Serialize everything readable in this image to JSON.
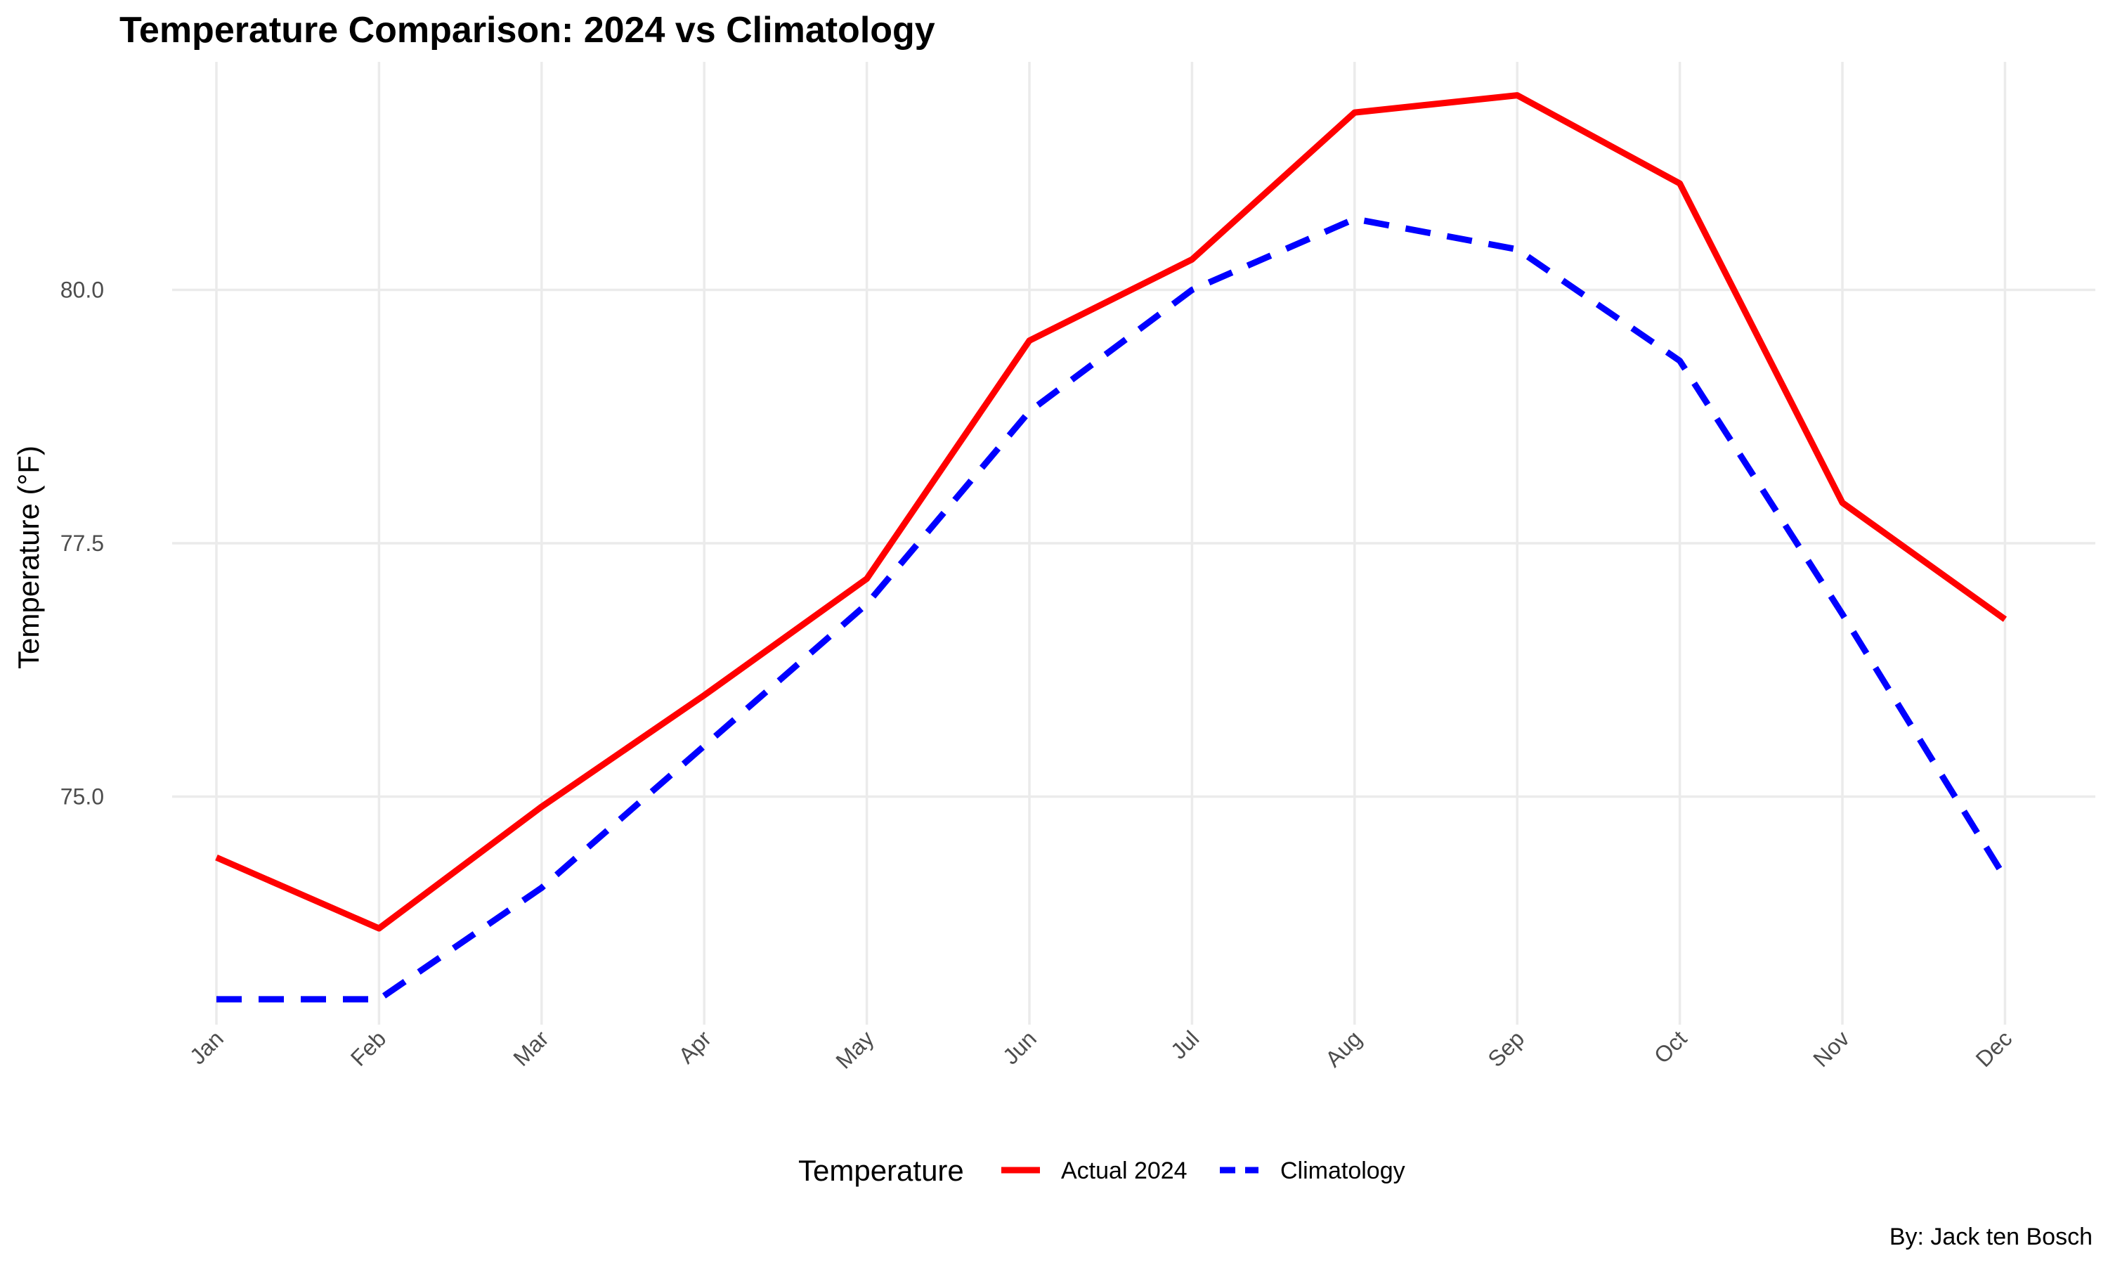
{
  "chart_data": {
    "type": "line",
    "title": "Temperature Comparison: 2024 vs Climatology",
    "xlabel": "",
    "ylabel": "Temperature (°F)",
    "categories": [
      "Jan",
      "Feb",
      "Mar",
      "Apr",
      "May",
      "Jun",
      "Jul",
      "Aug",
      "Sep",
      "Oct",
      "Nov",
      "Dec"
    ],
    "ylim": [
      72.75,
      82.25
    ],
    "yticks": [
      75.0,
      77.5,
      80.0
    ],
    "ytick_labels": [
      "75.0",
      "77.5",
      "80.0"
    ],
    "grid": true,
    "legend": {
      "title": "Temperature",
      "placement": "bottom"
    },
    "series": [
      {
        "name": "Actual 2024",
        "color": "#ff0000",
        "dash": "solid",
        "values": [
          74.4,
          73.7,
          74.9,
          76.0,
          77.15,
          79.5,
          80.3,
          81.75,
          81.92,
          81.05,
          77.9,
          76.75
        ]
      },
      {
        "name": "Climatology",
        "color": "#0000ff",
        "dash": "dashed",
        "values": [
          73.0,
          73.0,
          74.1,
          75.5,
          76.9,
          78.8,
          80.0,
          80.7,
          80.4,
          79.3,
          76.8,
          74.2
        ]
      }
    ],
    "caption": "By: Jack ten Bosch"
  }
}
